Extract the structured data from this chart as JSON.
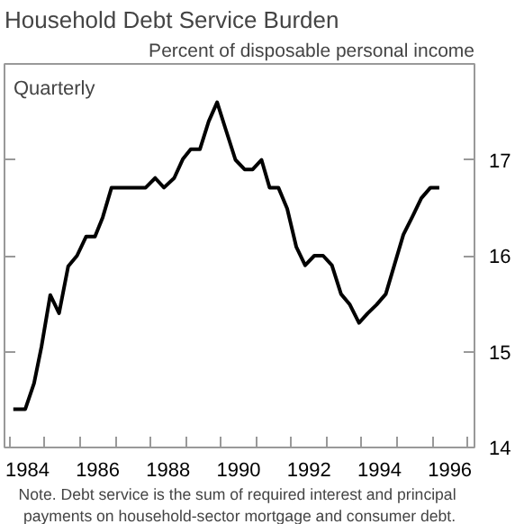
{
  "chart_data": {
    "type": "line",
    "title": "Household Debt Service Burden",
    "ylabel": "Percent of disposable personal income",
    "annotations": [
      "Quarterly",
      "Note.  Debt service is the sum of required interest and principal payments on household-sector mortgage and consumer debt."
    ],
    "x": [
      1984.1,
      1984.44,
      1984.69,
      1984.9,
      1985.15,
      1985.4,
      1985.66,
      1985.91,
      1986.17,
      1986.42,
      1986.64,
      1986.89,
      1987.86,
      1988.13,
      1988.38,
      1988.67,
      1988.92,
      1989.14,
      1989.4,
      1989.65,
      1989.89,
      1990.14,
      1990.41,
      1990.67,
      1990.9,
      1991.15,
      1991.38,
      1991.63,
      1991.88,
      1992.14,
      1992.39,
      1992.65,
      1992.9,
      1993.15,
      1993.41,
      1993.66,
      1993.92,
      1994.17,
      1994.42,
      1994.68,
      1994.93,
      1995.18,
      1995.44,
      1995.69,
      1995.95,
      1996.2
    ],
    "series": [
      {
        "color": "#000000",
        "values": [
          14.4,
          14.4,
          14.67,
          15.05,
          15.59,
          15.4,
          15.89,
          16.0,
          16.2,
          16.2,
          16.4,
          16.71,
          16.71,
          16.81,
          16.71,
          16.81,
          17.01,
          17.11,
          17.11,
          17.4,
          17.6,
          17.31,
          17.0,
          16.9,
          16.9,
          17.0,
          16.71,
          16.71,
          16.49,
          16.09,
          15.9,
          16.0,
          16.0,
          15.9,
          15.6,
          15.49,
          15.3,
          15.4,
          15.49,
          15.6,
          15.91,
          16.22,
          16.41,
          16.6,
          16.71,
          16.71
        ]
      }
    ],
    "xlim": [
      1983.85,
      1997.2
    ],
    "ylim": [
      14,
      18
    ],
    "yticks": [
      14,
      15,
      16,
      17
    ],
    "xticks": [
      {
        "value": 1984,
        "label": null
      },
      {
        "value": 1985,
        "label": null
      },
      {
        "value": 1986,
        "label": null
      },
      {
        "value": 1987,
        "label": null
      },
      {
        "value": 1988,
        "label": null
      },
      {
        "value": 1989,
        "label": null
      },
      {
        "value": 1990,
        "label": null
      },
      {
        "value": 1991,
        "label": null
      },
      {
        "value": 1992,
        "label": null
      },
      {
        "value": 1993,
        "label": null
      },
      {
        "value": 1994,
        "label": null
      },
      {
        "value": 1995,
        "label": null
      },
      {
        "value": 1996,
        "label": null
      },
      {
        "value": 1997,
        "label": null
      },
      {
        "value": 1984.5,
        "label": "1984"
      },
      {
        "value": 1986.5,
        "label": "1986"
      },
      {
        "value": 1988.5,
        "label": "1988"
      },
      {
        "value": 1990.5,
        "label": "1990"
      },
      {
        "value": 1992.5,
        "label": "1992"
      },
      {
        "value": 1994.5,
        "label": "1994"
      },
      {
        "value": 1996.5,
        "label": "1996"
      }
    ],
    "line_style": "solid"
  }
}
